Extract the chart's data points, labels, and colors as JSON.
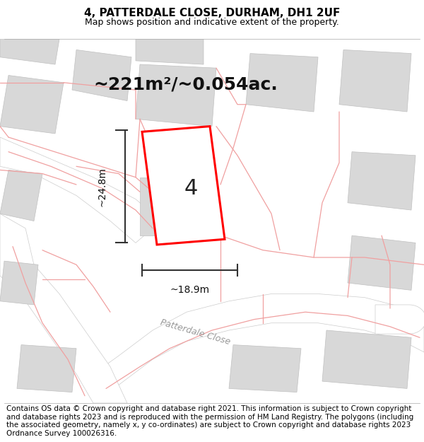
{
  "title": "4, PATTERDALE CLOSE, DURHAM, DH1 2UF",
  "subtitle": "Map shows position and indicative extent of the property.",
  "area_text": "~221m²/~0.054ac.",
  "label_number": "4",
  "dim_height": "~24.8m",
  "dim_width": "~18.9m",
  "street_label": "Patterdale Close",
  "footer_text": "Contains OS data © Crown copyright and database right 2021. This information is subject to Crown copyright and database rights 2023 and is reproduced with the permission of HM Land Registry. The polygons (including the associated geometry, namely x, y co-ordinates) are subject to Crown copyright and database rights 2023 Ordnance Survey 100026316.",
  "bg_color": "#ffffff",
  "map_bg": "#ebebeb",
  "building_color": "#d8d8d8",
  "road_color": "#ffffff",
  "road_outline": "#cccccc",
  "plot_outline": "#ff0000",
  "plot_fill": "#ffffff",
  "pink_line_color": "#f0a0a0",
  "dim_line_color": "#333333",
  "title_fontsize": 11,
  "subtitle_fontsize": 9,
  "area_fontsize": 18,
  "label_fontsize": 22,
  "dim_fontsize": 10,
  "street_fontsize": 9,
  "footer_fontsize": 7.5
}
